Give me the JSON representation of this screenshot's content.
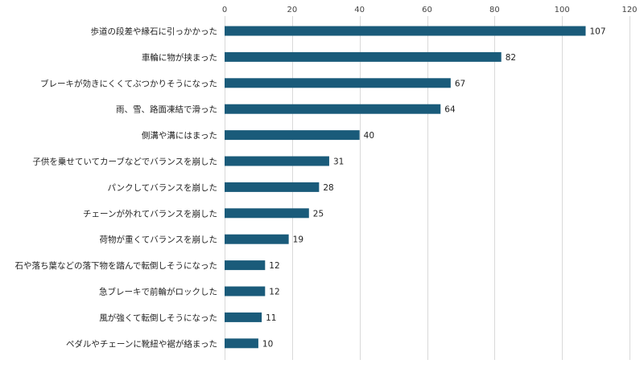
{
  "chart_data": {
    "type": "bar",
    "orientation": "horizontal",
    "categories": [
      "歩道の段差や縁石に引っかかった",
      "車輪に物が挟まった",
      "ブレーキが効きにくくてぶつかりそうになった",
      "雨、雪、路面凍結で滑った",
      "側溝や溝にはまった",
      "子供を乗せていてカーブなどでバランスを崩した",
      "パンクしてバランスを崩した",
      "チェーンが外れてバランスを崩した",
      "荷物が重くてバランスを崩した",
      "石や落ち葉などの落下物を踏んで転倒しそうになった",
      "急ブレーキで前輪がロックした",
      "風が強くて転倒しそうになった",
      "ペダルやチェーンに靴紐や裾が絡まった"
    ],
    "values": [
      107,
      82,
      67,
      64,
      40,
      31,
      28,
      25,
      19,
      12,
      12,
      11,
      10
    ],
    "xlim": [
      0,
      120
    ],
    "xticks": [
      0,
      20,
      40,
      60,
      80,
      100,
      120
    ],
    "x_axis_position": "top",
    "grid": true,
    "data_labels": true,
    "bar_color": "#1a5b7a",
    "title": "",
    "xlabel": "",
    "ylabel": ""
  }
}
